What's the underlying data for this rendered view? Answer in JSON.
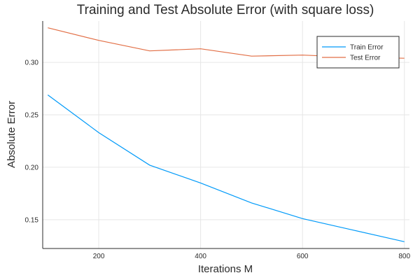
{
  "chart_data": {
    "type": "line",
    "title": "Training and Test Absolute Error (with square loss)",
    "xlabel": "Iterations M",
    "ylabel": "Absolute Error",
    "xlim": [
      90,
      810
    ],
    "ylim": [
      0.1225,
      0.3395
    ],
    "xticks": [
      200,
      400,
      600,
      800
    ],
    "yticks": [
      0.15,
      0.2,
      0.25,
      0.3
    ],
    "ytick_labels": [
      "0.15",
      "0.20",
      "0.25",
      "0.30"
    ],
    "x": [
      100,
      200,
      300,
      400,
      500,
      600,
      700,
      800
    ],
    "series": [
      {
        "name": "Train Error",
        "color": "#009af9",
        "values": [
          0.269,
          0.233,
          0.202,
          0.185,
          0.166,
          0.151,
          0.14,
          0.129
        ]
      },
      {
        "name": "Test Error",
        "color": "#e26f46",
        "values": [
          0.333,
          0.321,
          0.311,
          0.313,
          0.306,
          0.307,
          0.305,
          0.304
        ]
      }
    ],
    "grid": true,
    "legend_position": "top-right"
  }
}
